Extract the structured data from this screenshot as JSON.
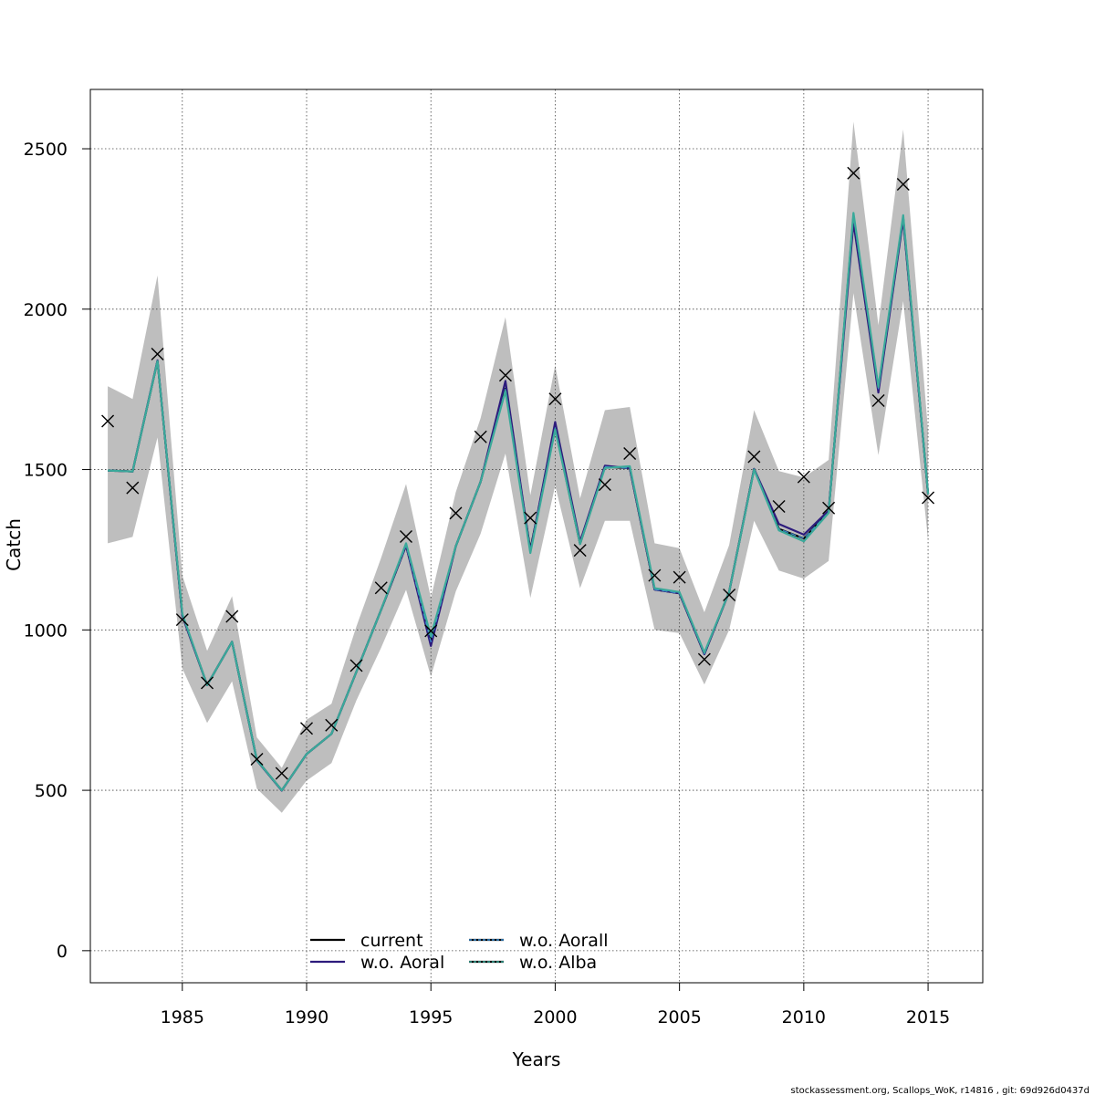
{
  "chart_data": {
    "type": "line",
    "xlabel": "Years",
    "ylabel": "Catch",
    "xlim": [
      1981.3,
      2017.2
    ],
    "ylim": [
      -100,
      2685
    ],
    "xticks": [
      1985,
      1990,
      1995,
      2000,
      2005,
      2010,
      2015
    ],
    "yticks": [
      0,
      500,
      1000,
      1500,
      2000,
      2500
    ],
    "grid": true,
    "legend_position": "bottom-center",
    "footer": "stockassessment.org, Scallops_WoK, r14816 , git: 69d926d0437d",
    "x": [
      1982,
      1983,
      1984,
      1985,
      1986,
      1987,
      1988,
      1989,
      1990,
      1991,
      1992,
      1993,
      1994,
      1995,
      1996,
      1997,
      1998,
      1999,
      2000,
      2001,
      2002,
      2003,
      2004,
      2005,
      2006,
      2007,
      2008,
      2009,
      2010,
      2011,
      2012,
      2013,
      2014,
      2015
    ],
    "observed": {
      "marker": "x",
      "values": [
        1651,
        1443,
        1860,
        1032,
        835,
        1042,
        597,
        553,
        693,
        703,
        889,
        1131,
        1291,
        997,
        1364,
        1602,
        1794,
        1349,
        1720,
        1248,
        1453,
        1550,
        1170,
        1164,
        908,
        1109,
        1540,
        1385,
        1477,
        1380,
        2424,
        1715,
        2389,
        1412
      ]
    },
    "confidence_band": {
      "color": "#bebebe",
      "lower": [
        1270,
        1290,
        1600,
        880,
        710,
        840,
        505,
        430,
        530,
        585,
        780,
        945,
        1125,
        855,
        1120,
        1300,
        1550,
        1100,
        1450,
        1130,
        1340,
        1340,
        1000,
        990,
        830,
        1000,
        1340,
        1185,
        1160,
        1215,
        2050,
        1545,
        2025,
        1280
      ],
      "upper": [
        1760,
        1720,
        2105,
        1170,
        935,
        1105,
        665,
        570,
        720,
        770,
        1010,
        1225,
        1455,
        1100,
        1430,
        1660,
        1975,
        1420,
        1825,
        1410,
        1685,
        1695,
        1270,
        1255,
        1055,
        1265,
        1685,
        1495,
        1475,
        1530,
        2585,
        1950,
        2560,
        1620
      ]
    },
    "series": [
      {
        "name": "current",
        "color": "#000000",
        "dash": "",
        "values": [
          1497,
          1494,
          1838,
          1046,
          828,
          963,
          594,
          500,
          613,
          676,
          869,
          1063,
          1263,
          963,
          1261,
          1462,
          1752,
          1250,
          1630,
          1268,
          1509,
          1504,
          1126,
          1114,
          925,
          1119,
          1502,
          1315,
          1285,
          1367,
          2290,
          1752,
          2285,
          1423
        ]
      },
      {
        "name": "w.o. Aoral",
        "color": "#2d1b7c",
        "dash": "",
        "values": [
          1497,
          1494,
          1840,
          1044,
          828,
          963,
          593,
          499,
          613,
          676,
          869,
          1063,
          1263,
          950,
          1261,
          1462,
          1776,
          1245,
          1648,
          1275,
          1512,
          1504,
          1126,
          1114,
          924,
          1119,
          1502,
          1330,
          1297,
          1372,
          2270,
          1740,
          2280,
          1423
        ]
      },
      {
        "name": "w.o. Aorall",
        "color": "#3b8fd6",
        "dash": "6,3",
        "values": [
          1497,
          1494,
          1838,
          1046,
          828,
          963,
          594,
          500,
          613,
          676,
          869,
          1063,
          1263,
          963,
          1261,
          1462,
          1752,
          1250,
          1630,
          1268,
          1509,
          1504,
          1126,
          1114,
          925,
          1119,
          1502,
          1315,
          1285,
          1367,
          2290,
          1752,
          2285,
          1423
        ]
      },
      {
        "name": "w.o. Alba",
        "color": "#3aa99a",
        "dash": "",
        "values": [
          1497,
          1494,
          1838,
          1050,
          828,
          963,
          594,
          500,
          613,
          676,
          869,
          1063,
          1270,
          980,
          1261,
          1462,
          1745,
          1240,
          1625,
          1268,
          1505,
          1510,
          1130,
          1118,
          929,
          1119,
          1500,
          1310,
          1276,
          1365,
          2300,
          1757,
          2293,
          1423
        ]
      }
    ]
  }
}
